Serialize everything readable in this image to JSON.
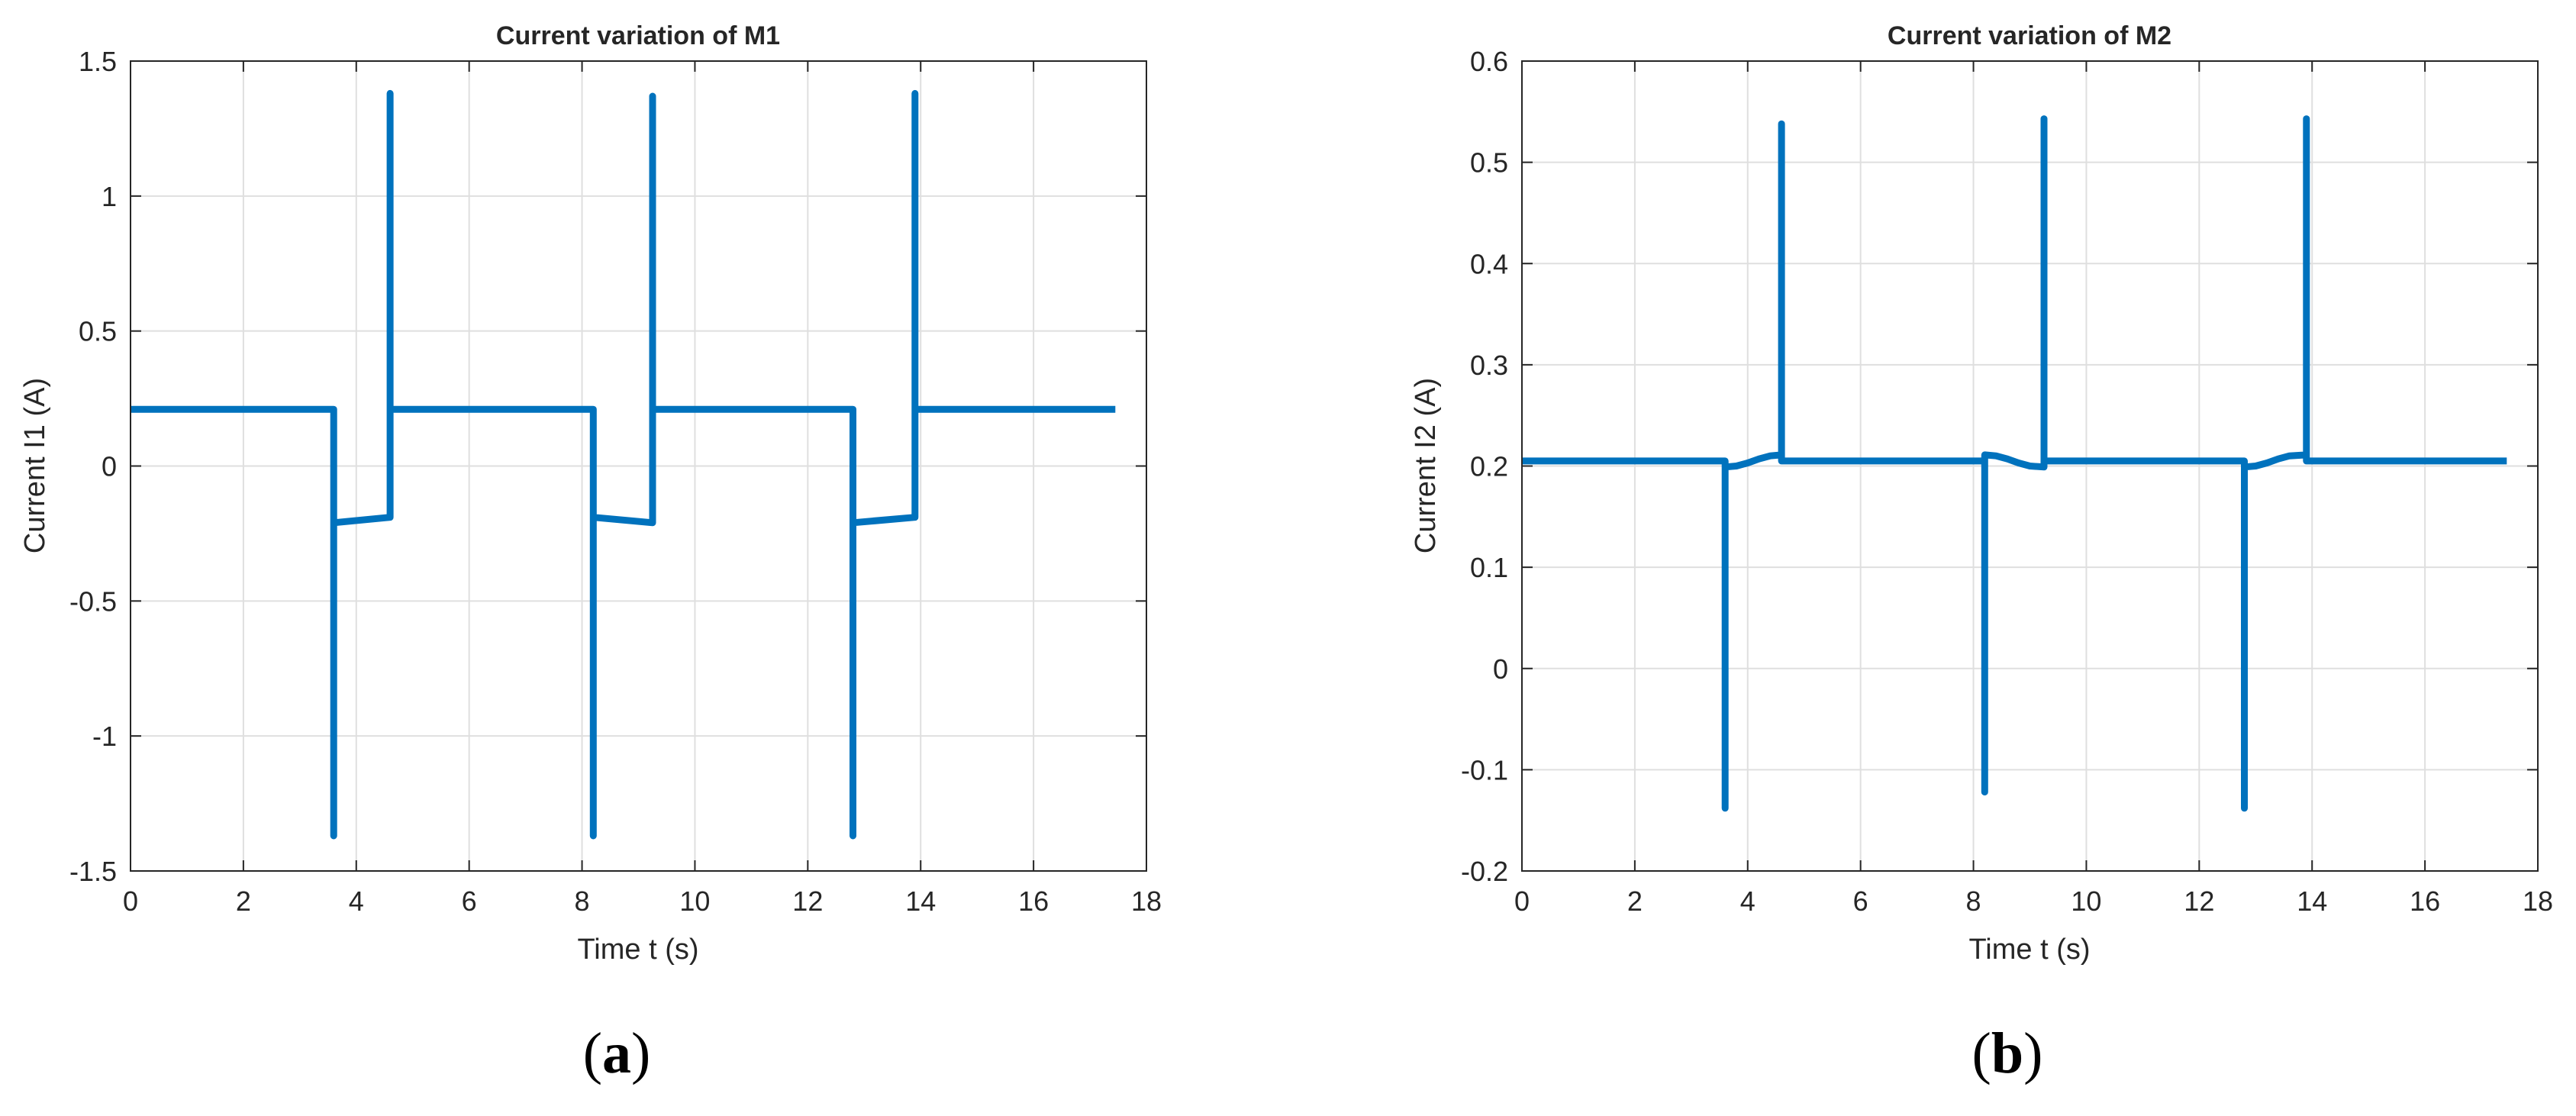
{
  "colors": {
    "line": "#0072BD",
    "axis": "#262626",
    "grid": "#DFDFDF",
    "background": "#FFFFFF"
  },
  "chart_data": [
    {
      "type": "line",
      "title": "Current variation of M1",
      "xlabel": "Time t (s)",
      "ylabel": "Current I1 (A)",
      "xlim": [
        0,
        18
      ],
      "ylim": [
        -1.5,
        1.5
      ],
      "xticks": [
        0,
        2,
        4,
        6,
        8,
        10,
        12,
        14,
        16,
        18
      ],
      "yticks": [
        -1.5,
        -1,
        -0.5,
        0,
        0.5,
        1,
        1.5
      ],
      "grid": true,
      "panel_label": "a",
      "series": [
        {
          "x": [
            0,
            3.6,
            3.6,
            3.6,
            4.6,
            4.6,
            4.6,
            8.2,
            8.2,
            8.2,
            9.25,
            9.25,
            9.25,
            12.8,
            12.8,
            12.8,
            13.9,
            13.9,
            13.9,
            17.45
          ],
          "y": [
            0.21,
            0.21,
            -1.37,
            -0.21,
            -0.19,
            1.38,
            0.21,
            0.21,
            -1.37,
            -0.19,
            -0.21,
            1.37,
            0.21,
            0.21,
            -1.37,
            -0.21,
            -0.19,
            1.38,
            0.21,
            0.21
          ]
        }
      ]
    },
    {
      "type": "line",
      "title": "Current variation of M2",
      "xlabel": "Time t (s)",
      "ylabel": "Current I2 (A)",
      "xlim": [
        0,
        18
      ],
      "ylim": [
        -0.2,
        0.6
      ],
      "xticks": [
        0,
        2,
        4,
        6,
        8,
        10,
        12,
        14,
        16,
        18
      ],
      "yticks": [
        -0.2,
        -0.1,
        0,
        0.1,
        0.2,
        0.3,
        0.4,
        0.5,
        0.6
      ],
      "grid": true,
      "panel_label": "b",
      "series": [
        {
          "x": [
            0,
            3.6,
            3.6,
            3.6,
            3.8,
            4.0,
            4.2,
            4.4,
            4.6,
            4.6,
            4.6,
            8.2,
            8.2,
            8.2,
            8.4,
            8.6,
            8.8,
            9.0,
            9.25,
            9.25,
            9.25,
            12.8,
            12.8,
            12.8,
            13.0,
            13.2,
            13.4,
            13.6,
            13.9,
            13.9,
            13.9,
            17.45
          ],
          "y": [
            0.205,
            0.205,
            -0.138,
            0.199,
            0.2,
            0.203,
            0.207,
            0.21,
            0.211,
            0.538,
            0.205,
            0.205,
            -0.122,
            0.211,
            0.21,
            0.207,
            0.203,
            0.2,
            0.199,
            0.543,
            0.205,
            0.205,
            -0.138,
            0.199,
            0.2,
            0.203,
            0.207,
            0.21,
            0.211,
            0.543,
            0.205,
            0.205
          ]
        }
      ]
    }
  ]
}
